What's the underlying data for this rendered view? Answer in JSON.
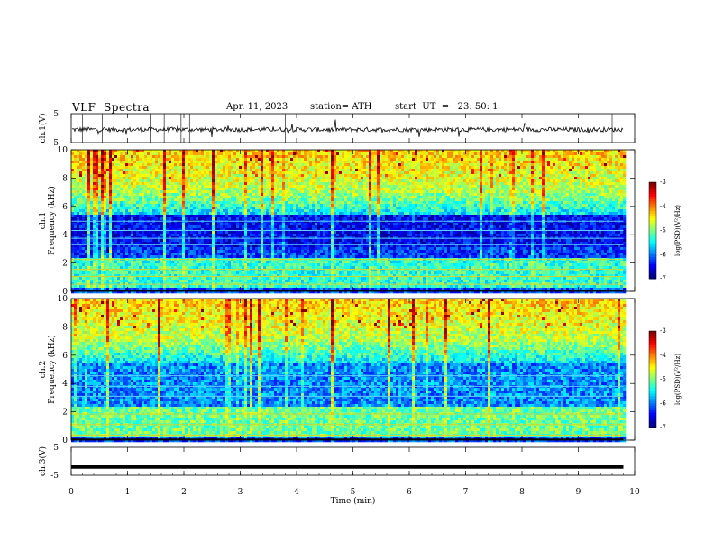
{
  "header": {
    "title": "VLF  Spectra",
    "date": "Apr. 11, 2023",
    "station": "station= ATH",
    "start": "start  UT  =   23: 50: 1"
  },
  "chart_data": [
    {
      "type": "line",
      "ylabel": "ch.1(V)",
      "ylim": [
        -5,
        5
      ],
      "yticks": [
        "5",
        "-5"
      ],
      "description_level": -0.5
    },
    {
      "type": "heatmap",
      "ylabel_top": "ch.1",
      "ylabel": "Frequency  (kHz)",
      "ylim": [
        0,
        10
      ],
      "yticks": [
        "0",
        "2",
        "4",
        "6",
        "8",
        "10"
      ],
      "colorbar": {
        "label": "log(PSD)(V²/Hz)",
        "ticks": [
          "-3",
          "-4",
          "-5",
          "-6",
          "-7"
        ],
        "range": [
          -7,
          -3
        ]
      }
    },
    {
      "type": "heatmap",
      "ylabel_top": "ch.2",
      "ylabel": "Frequency  (kHz)",
      "ylim": [
        0,
        10
      ],
      "yticks": [
        "0",
        "2",
        "4",
        "6",
        "8",
        "10"
      ],
      "colorbar": {
        "label": "log(PSD)(V²/Hz)",
        "ticks": [
          "-3",
          "-4",
          "-5",
          "-6",
          "-7"
        ],
        "range": [
          -7,
          -3
        ]
      }
    },
    {
      "type": "line",
      "ylabel": "ch.3(V)",
      "ylim": [
        -5,
        5
      ],
      "yticks": [
        "5",
        "-5"
      ],
      "level": -2
    }
  ],
  "xaxis": {
    "label": "Time  (min)",
    "ticks": [
      "0",
      "1",
      "2",
      "3",
      "4",
      "5",
      "6",
      "7",
      "8",
      "9",
      "10"
    ],
    "xlim": [
      0,
      10
    ],
    "data_end": 9.8
  }
}
